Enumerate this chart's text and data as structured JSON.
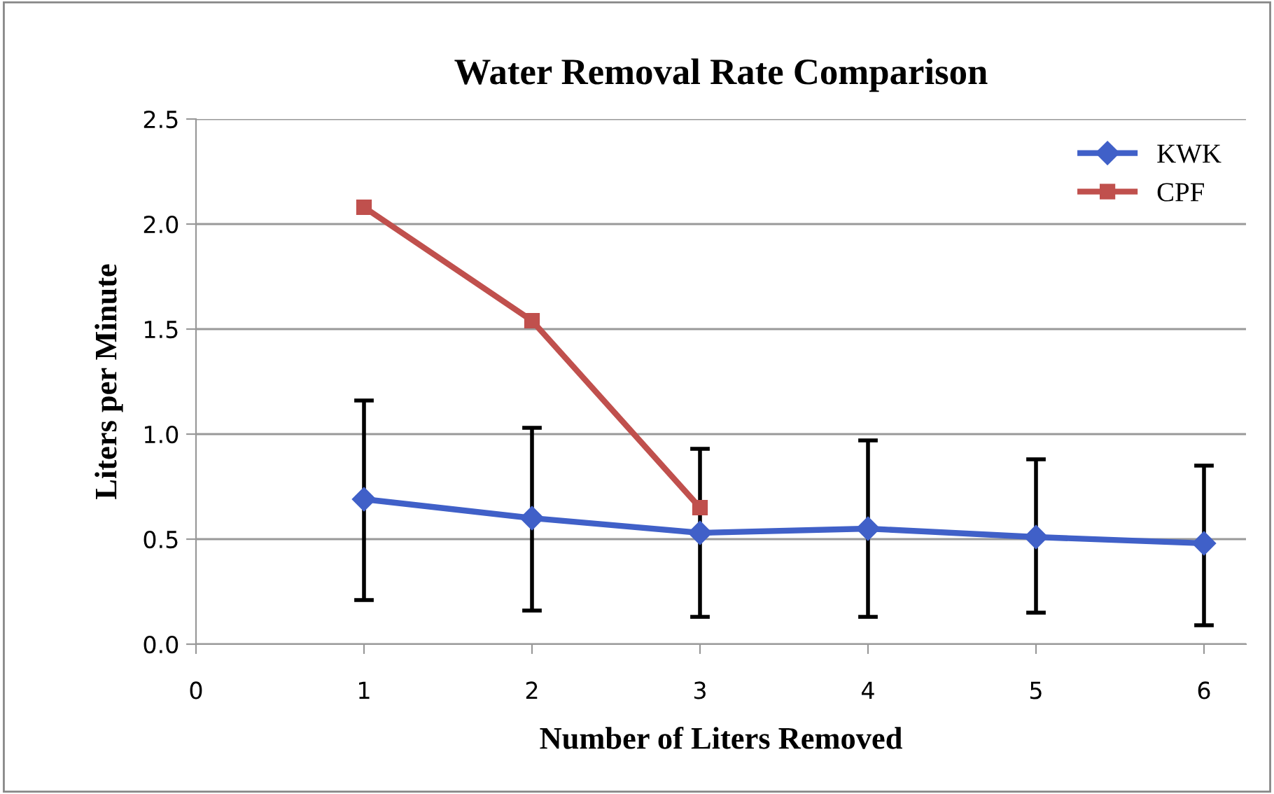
{
  "chart_data": {
    "type": "line",
    "title": "Water Removal Rate Comparison",
    "xlabel": "Number of Liters Removed",
    "ylabel": "Liters per Minute",
    "xlim": [
      0,
      6.25
    ],
    "xticks": [
      0,
      1,
      2,
      3,
      4,
      5,
      6
    ],
    "ylim": [
      0,
      2.5
    ],
    "yticks": [
      {
        "value": 0,
        "label": "0.0"
      },
      {
        "value": 0.5,
        "label": "0.5"
      },
      {
        "value": 1,
        "label": "1.0"
      },
      {
        "value": 1.5,
        "label": "1.5"
      },
      {
        "value": 2,
        "label": "2.0"
      },
      {
        "value": 2.5,
        "label": "2.5"
      }
    ],
    "grid": "y",
    "legend": "top right",
    "series": [
      {
        "name": "KWK",
        "color": "#4060c8",
        "marker": "diamond",
        "x": [
          1,
          2,
          3,
          4,
          5,
          6
        ],
        "values": [
          0.69,
          0.6,
          0.53,
          0.55,
          0.51,
          0.48
        ],
        "errors": [
          [
            0.21,
            1.16
          ],
          [
            0.16,
            1.03
          ],
          [
            0.13,
            0.93
          ],
          [
            0.13,
            0.97
          ],
          [
            0.15,
            0.88
          ],
          [
            0.09,
            0.85
          ]
        ]
      },
      {
        "name": "CPF",
        "color": "#c0504d",
        "marker": "square",
        "x": [
          1,
          2,
          3
        ],
        "values": [
          2.08,
          1.54,
          0.65
        ]
      }
    ]
  }
}
